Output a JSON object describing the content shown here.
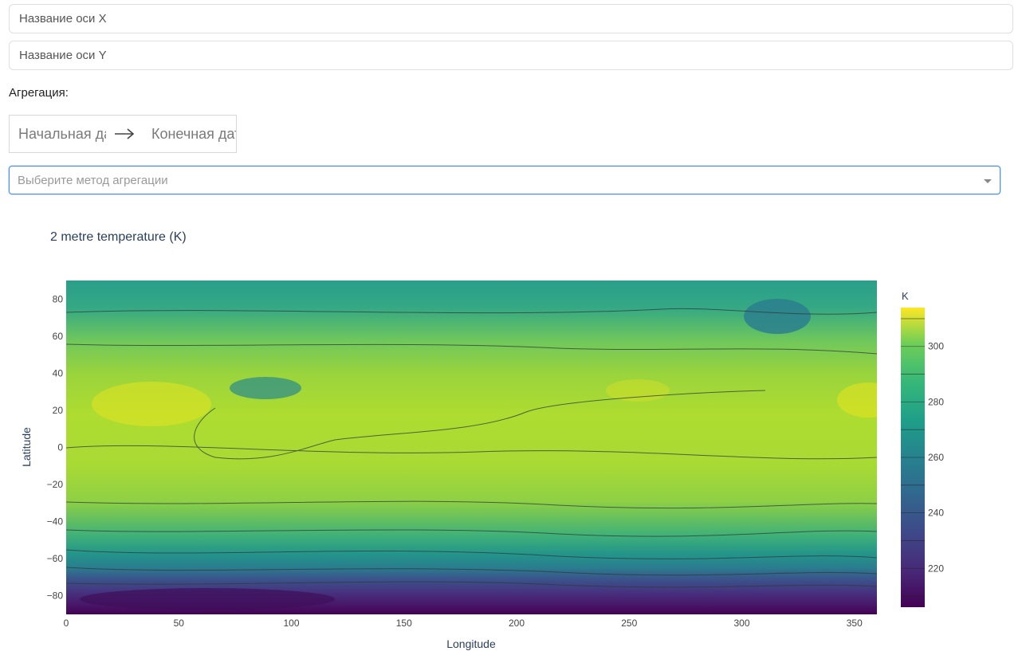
{
  "controls": {
    "x_axis_placeholder": "Название оси X",
    "y_axis_placeholder": "Название оси Y",
    "aggregation_label": "Агрегация:",
    "start_date_placeholder": "Начальная дата",
    "end_date_placeholder": "Конечная дата",
    "aggregation_method_placeholder": "Выберите метод агрегации"
  },
  "chart_data": {
    "type": "heatmap",
    "title": "2 metre temperature (K)",
    "xlabel": "Longitude",
    "ylabel": "Latitude",
    "xlim": [
      0,
      360
    ],
    "ylim": [
      -90,
      90
    ],
    "x_ticks": [
      0,
      50,
      100,
      150,
      200,
      250,
      300,
      350
    ],
    "y_ticks": [
      -80,
      -60,
      -40,
      -20,
      0,
      20,
      40,
      60,
      80
    ],
    "colorbar": {
      "title": "K",
      "range": [
        206,
        314
      ],
      "ticks": [
        220,
        240,
        260,
        280,
        300
      ],
      "colorscale": "viridis"
    },
    "overlay": "contour lines and coastlines",
    "colors": [
      "#440154",
      "#3b528b",
      "#21918c",
      "#5ec962",
      "#fde725"
    ]
  }
}
